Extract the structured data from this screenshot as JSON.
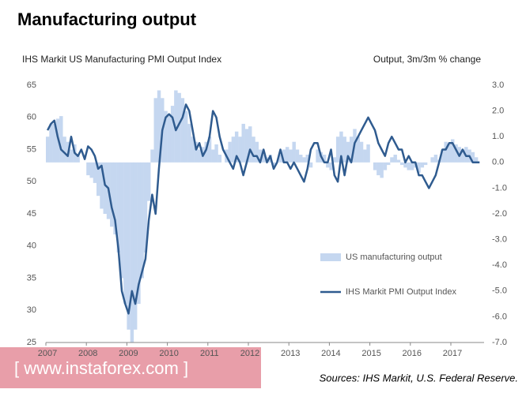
{
  "chart_data": {
    "type": "combo",
    "title": "Manufacturing output",
    "subtitle_left": "IHS Markit US Manufacturing PMI Output Index",
    "subtitle_right": "Output, 3m/3m % change",
    "source": "Sources: IHS Markit, U.S. Federal Reserve.",
    "watermark": "[ www.instaforex.com ]",
    "legend": "right",
    "categories": [
      "2007",
      null,
      null,
      null,
      null,
      null,
      null,
      null,
      null,
      null,
      null,
      null,
      "2008",
      null,
      null,
      null,
      null,
      null,
      null,
      null,
      null,
      null,
      null,
      null,
      "2009",
      null,
      null,
      null,
      null,
      null,
      null,
      null,
      null,
      null,
      null,
      null,
      "2010",
      null,
      null,
      null,
      null,
      null,
      null,
      null,
      null,
      null,
      null,
      null,
      "2011",
      null,
      null,
      null,
      null,
      null,
      null,
      null,
      null,
      null,
      null,
      null,
      "2012",
      null,
      null,
      null,
      null,
      null,
      null,
      null,
      null,
      null,
      null,
      null,
      "2013",
      null,
      null,
      null,
      null,
      null,
      null,
      null,
      null,
      null,
      null,
      null,
      "2014",
      null,
      null,
      null,
      null,
      null,
      null,
      null,
      null,
      null,
      null,
      null,
      "2015",
      null,
      null,
      null,
      null,
      null,
      null,
      null,
      null,
      null,
      null,
      null,
      "2016",
      null,
      null,
      null,
      null,
      null,
      null,
      null,
      null,
      null,
      null,
      null,
      "2017",
      null,
      null,
      null,
      null,
      null,
      null,
      null,
      null
    ],
    "series": [
      {
        "name": "US manufacturing output",
        "type": "bar",
        "axis": "y2",
        "color": "#c5d7f0",
        "values": [
          1.0,
          1.5,
          1.5,
          1.7,
          1.8,
          1.0,
          0.8,
          0.5,
          0.7,
          0.3,
          0.0,
          0.0,
          -0.5,
          -0.6,
          -0.8,
          -1.3,
          -1.8,
          -2.0,
          -2.2,
          -2.5,
          -2.8,
          -3.5,
          -4.5,
          -5.5,
          -6.5,
          -7.0,
          -6.5,
          -5.5,
          -4.5,
          -3.5,
          -1.5,
          0.5,
          2.5,
          2.8,
          2.5,
          2.0,
          1.8,
          2.2,
          2.8,
          2.7,
          2.5,
          2.0,
          1.5,
          1.0,
          0.8,
          0.5,
          0.6,
          0.8,
          1.0,
          0.5,
          0.7,
          0.3,
          0.0,
          0.5,
          0.8,
          1.0,
          1.2,
          1.0,
          1.5,
          1.3,
          1.4,
          1.0,
          0.8,
          0.5,
          0.3,
          0.2,
          0.3,
          -0.2,
          0.0,
          0.3,
          0.5,
          0.6,
          0.5,
          0.8,
          0.5,
          0.3,
          0.2,
          0.3,
          -0.2,
          0.0,
          0.5,
          0.4,
          0.3,
          -0.2,
          -0.3,
          0.2,
          1.0,
          1.2,
          1.0,
          0.8,
          1.0,
          1.3,
          1.0,
          0.8,
          0.5,
          0.7,
          0.0,
          -0.3,
          -0.5,
          -0.6,
          -0.3,
          -0.1,
          0.2,
          0.3,
          0.1,
          -0.1,
          -0.2,
          -0.3,
          -0.3,
          -0.2,
          -0.4,
          -0.2,
          -0.1,
          0.0,
          0.2,
          0.3,
          0.1,
          0.5,
          0.8,
          0.7,
          0.9,
          0.7,
          0.6,
          0.5,
          0.6,
          0.5,
          0.4,
          0.2,
          0.0
        ]
      },
      {
        "name": "IHS Markit PMI Output Index",
        "type": "line",
        "color": "#2f5b8f",
        "values": [
          58,
          59,
          59.5,
          57,
          55,
          54.5,
          54,
          57,
          54.5,
          54,
          55,
          53.5,
          55.5,
          55,
          54,
          52,
          52.5,
          49.5,
          49,
          46,
          44,
          39.5,
          33,
          31,
          29.5,
          33,
          31,
          34,
          36,
          38,
          44,
          48,
          45,
          52,
          58,
          60,
          60.5,
          60,
          58,
          59,
          60,
          62,
          61,
          58,
          55,
          56,
          54,
          55,
          57,
          61,
          60,
          57,
          55,
          54,
          53,
          52,
          54,
          53,
          51,
          53,
          55,
          54,
          54,
          53,
          55,
          53,
          54,
          52,
          53,
          55,
          53,
          53,
          52,
          53,
          52,
          51,
          50,
          52,
          55,
          56,
          56,
          54,
          53,
          53,
          55,
          51,
          50,
          54,
          51,
          54,
          53,
          56,
          57,
          58,
          59,
          60,
          59,
          58,
          56,
          55,
          54,
          56,
          57,
          56,
          55,
          55,
          53,
          54,
          53,
          53,
          51,
          51,
          50,
          49,
          50,
          51,
          53,
          55,
          55,
          56,
          56,
          55,
          54,
          55,
          54,
          54,
          53,
          53,
          53
        ]
      }
    ],
    "ylim": [
      25,
      65
    ],
    "yticks": [
      25,
      30,
      35,
      40,
      45,
      50,
      55,
      60,
      65
    ],
    "y2lim": [
      -7,
      3
    ],
    "y2ticks": [
      {
        "value": -7,
        "label": "-7.0"
      },
      {
        "value": -6,
        "label": "-6.0"
      },
      {
        "value": -5,
        "label": "-5.0"
      },
      {
        "value": -4,
        "label": "-4.0"
      },
      {
        "value": -3,
        "label": "-3.0"
      },
      {
        "value": -2,
        "label": "-2.0"
      },
      {
        "value": -1,
        "label": "-1.0"
      },
      {
        "value": 0,
        "label": "0.0"
      },
      {
        "value": 1,
        "label": "1.0"
      },
      {
        "value": 2,
        "label": "2.0"
      },
      {
        "value": 3,
        "label": "3.0"
      }
    ]
  }
}
